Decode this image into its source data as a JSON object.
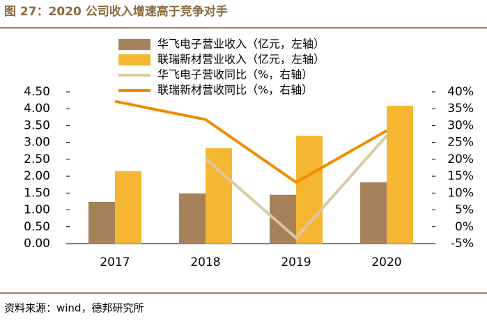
{
  "chart_data": {
    "type": "combo",
    "title": "图 27：2020 公司收入增速高于竞争对手",
    "source": "资料来源：wind，德邦研究所",
    "categories": [
      "2017",
      "2018",
      "2019",
      "2020"
    ],
    "series": [
      {
        "name": "华飞电子营业收入（亿元，左轴）",
        "type": "bar",
        "color": "#a5825a",
        "values": [
          1.24,
          1.49,
          1.45,
          1.82
        ]
      },
      {
        "name": "联瑞新材营业收入（亿元，左轴）",
        "type": "bar",
        "color": "#f5b731",
        "values": [
          2.15,
          2.83,
          3.2,
          4.09
        ]
      },
      {
        "name": "华飞电子营收同比（%，右轴）",
        "type": "line",
        "axis": "y2",
        "color": "#d9c9a3",
        "values": [
          null,
          20.2,
          -3.3,
          27
        ]
      },
      {
        "name": "联瑞新材营收同比（%，右轴）",
        "type": "line",
        "axis": "y2",
        "color": "#f08c00",
        "values": [
          37.2,
          31.8,
          13.2,
          28.5
        ]
      }
    ],
    "ylim": [
      0,
      4.5
    ],
    "yticks": [
      {
        "value": 0,
        "label": "0.00"
      },
      {
        "value": 0.5,
        "label": "0.50"
      },
      {
        "value": 1,
        "label": "1.00"
      },
      {
        "value": 1.5,
        "label": "1.50"
      },
      {
        "value": 2,
        "label": "2.00"
      },
      {
        "value": 2.5,
        "label": "2.50"
      },
      {
        "value": 3,
        "label": "3.00"
      },
      {
        "value": 3.5,
        "label": "3.50"
      },
      {
        "value": 4,
        "label": "4.00"
      },
      {
        "value": 4.5,
        "label": "4.50"
      }
    ],
    "y2lim": [
      -5,
      40
    ],
    "y2ticks": [
      {
        "value": -5,
        "label": "-5%"
      },
      {
        "value": 0,
        "label": "0%"
      },
      {
        "value": 5,
        "label": "5%"
      },
      {
        "value": 10,
        "label": "10%"
      },
      {
        "value": 15,
        "label": "15%"
      },
      {
        "value": 20,
        "label": "20%"
      },
      {
        "value": 25,
        "label": "25%"
      },
      {
        "value": 30,
        "label": "30%"
      },
      {
        "value": 35,
        "label": "35%"
      },
      {
        "value": 40,
        "label": "40%"
      }
    ]
  }
}
